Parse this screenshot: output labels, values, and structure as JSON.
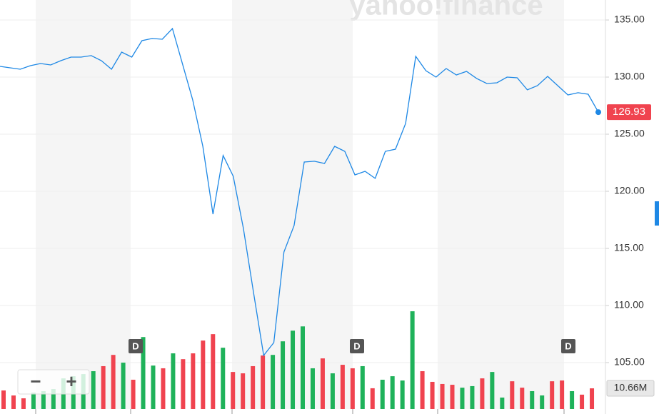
{
  "chart_data": {
    "type": "line",
    "watermark": "yahoo!finance",
    "values": [
      130.94,
      130.81,
      130.69,
      131.0,
      131.19,
      131.06,
      131.44,
      131.75,
      131.75,
      131.88,
      131.44,
      130.69,
      132.19,
      131.75,
      133.19,
      133.38,
      133.31,
      134.25,
      131.13,
      128.0,
      123.94,
      118.0,
      123.13,
      121.31,
      116.75,
      111.13,
      105.63,
      106.75,
      114.69,
      117.0,
      122.56,
      122.63,
      122.44,
      123.94,
      123.5,
      121.44,
      121.75,
      121.13,
      123.5,
      123.69,
      125.94,
      131.81,
      130.56,
      130.0,
      130.75,
      130.19,
      130.5,
      129.88,
      129.44,
      129.5,
      130.0,
      129.94,
      128.88,
      129.25,
      130.06,
      129.25,
      128.44,
      128.63,
      128.5,
      126.93
    ],
    "color": "#1e88e5",
    "last_price": 126.93,
    "ylim": [
      100.5,
      136.75
    ],
    "yticks": [
      {
        "value": 105,
        "label": "105.00"
      },
      {
        "value": 110,
        "label": "110.00"
      },
      {
        "value": 115,
        "label": "115.00"
      },
      {
        "value": 120,
        "label": "120.00"
      },
      {
        "value": 125,
        "label": "125.00"
      },
      {
        "value": 130,
        "label": "130.00"
      },
      {
        "value": 135,
        "label": "135.00"
      }
    ],
    "grid": true,
    "volume": {
      "values": [
        9.56,
        6.98,
        5.51,
        8.45,
        9.19,
        10.29,
        15.8,
        16.9,
        18.0,
        19.5,
        22.1,
        27.9,
        23.9,
        15.1,
        37.1,
        22.4,
        21.0,
        28.7,
        25.7,
        28.7,
        35.3,
        38.6,
        31.6,
        19.1,
        18.4,
        22.1,
        27.6,
        27.9,
        34.9,
        40.4,
        42.6,
        21.0,
        26.1,
        18.4,
        22.8,
        21.0,
        22.1,
        10.7,
        15.1,
        16.9,
        14.7,
        50.4,
        19.5,
        14.0,
        12.9,
        12.5,
        11.0,
        11.8,
        15.8,
        19.1,
        5.9,
        14.3,
        11.0,
        9.2,
        7.0,
        14.3,
        14.7,
        9.2,
        7.4,
        10.66
      ],
      "colors": [
        "#f0434f",
        "#f0434f",
        "#f0434f",
        "#1fb25a",
        "#1fb25a",
        "#1fb25a",
        "#1fb25a",
        "#1fb25a",
        "#1fb25a",
        "#1fb25a",
        "#f0434f",
        "#f0434f",
        "#1fb25a",
        "#f0434f",
        "#1fb25a",
        "#1fb25a",
        "#f0434f",
        "#1fb25a",
        "#f0434f",
        "#f0434f",
        "#f0434f",
        "#f0434f",
        "#1fb25a",
        "#f0434f",
        "#f0434f",
        "#f0434f",
        "#f0434f",
        "#1fb25a",
        "#1fb25a",
        "#1fb25a",
        "#1fb25a",
        "#1fb25a",
        "#f0434f",
        "#1fb25a",
        "#f0434f",
        "#f0434f",
        "#1fb25a",
        "#f0434f",
        "#1fb25a",
        "#1fb25a",
        "#1fb25a",
        "#1fb25a",
        "#f0434f",
        "#f0434f",
        "#f0434f",
        "#f0434f",
        "#1fb25a",
        "#1fb25a",
        "#f0434f",
        "#1fb25a",
        "#1fb25a",
        "#f0434f",
        "#f0434f",
        "#1fb25a",
        "#1fb25a",
        "#f0434f",
        "#f0434f",
        "#1fb25a",
        "#f0434f",
        "#f0434f"
      ],
      "lim": [
        0,
        60
      ],
      "last_label": "10.66M"
    },
    "events": [
      "D",
      "D",
      "D"
    ],
    "zoom": [
      "−",
      "+"
    ]
  }
}
